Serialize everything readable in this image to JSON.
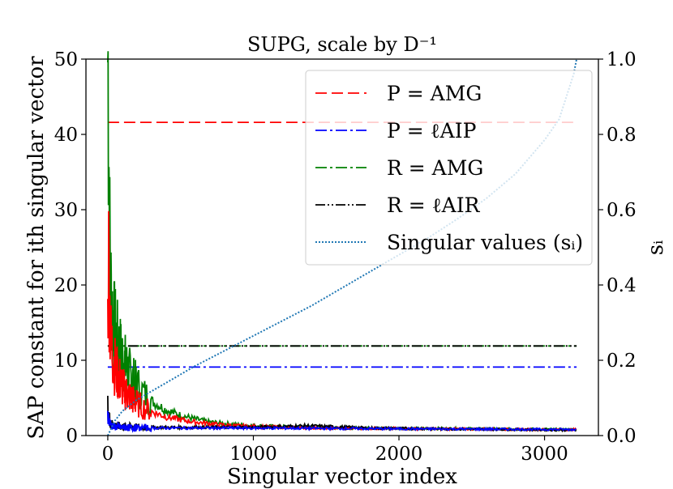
{
  "chart_data": {
    "type": "line",
    "title": "SUPG, scale by D⁻¹",
    "xlabel": "Singular vector index",
    "ylabel": "SAP constant for ith singular vector",
    "ylabel_right": "sᵢ",
    "xlim": [
      -150,
      3370
    ],
    "ylim": [
      0,
      50
    ],
    "ylim_right": [
      0.0,
      1.0
    ],
    "xticks": [
      0,
      1000,
      2000,
      3000
    ],
    "yticks": [
      0,
      10,
      20,
      30,
      40,
      50
    ],
    "yticks_right": [
      "0.0",
      "0.2",
      "0.4",
      "0.6",
      "0.8",
      "1.0"
    ],
    "n_vectors": 3220,
    "series": [
      {
        "name": "P = AMG (mean)",
        "legend": "P = AMG",
        "color": "#ff0000",
        "style": "dashed",
        "axis": "left",
        "x": [
          0,
          3220
        ],
        "y": [
          41.6,
          41.6
        ]
      },
      {
        "name": "P = ℓAIP (mean)",
        "legend": "P = ℓAIP",
        "color": "#0000ff",
        "style": "dashdot",
        "axis": "left",
        "x": [
          0,
          3220
        ],
        "y": [
          9.1,
          9.1
        ]
      },
      {
        "name": "R = AMG (mean)",
        "legend": "R = AMG",
        "color": "#008000",
        "style": "dashdot",
        "axis": "left",
        "x": [
          0,
          3220
        ],
        "y": [
          11.9,
          11.9
        ]
      },
      {
        "name": "R = ℓAIR (mean)",
        "legend": "R = ℓAIR",
        "color": "#000000",
        "style": "dashdotdot",
        "axis": "left",
        "x": [
          0,
          3220
        ],
        "y": [
          11.9,
          11.9
        ]
      },
      {
        "name": "R = AMG",
        "color": "#008000",
        "style": "solid",
        "axis": "left",
        "x": [
          0,
          5,
          10,
          15,
          20,
          30,
          40,
          60,
          80,
          100,
          130,
          160,
          200,
          250,
          300,
          400,
          500,
          600,
          700,
          800,
          1000,
          1200,
          1500,
          1800,
          2200,
          2600,
          3000,
          3220
        ],
        "y": [
          50,
          46,
          32,
          24,
          20,
          17,
          15,
          13,
          11.5,
          10.5,
          9,
          7.8,
          6.7,
          5.5,
          4.6,
          3.4,
          2.7,
          2.2,
          1.8,
          1.6,
          1.3,
          1.2,
          1.1,
          1.0,
          0.95,
          0.9,
          0.85,
          0.8
        ]
      },
      {
        "name": "P = AMG",
        "color": "#ff0000",
        "style": "solid",
        "axis": "left",
        "x": [
          0,
          5,
          10,
          15,
          20,
          30,
          40,
          60,
          80,
          100,
          130,
          160,
          200,
          250,
          300,
          400,
          500,
          600,
          700,
          800,
          1000,
          1200,
          1500,
          1800,
          2200,
          2600,
          3000,
          3220
        ],
        "y": [
          15,
          24,
          20,
          16,
          13,
          11.5,
          10,
          8.5,
          7.5,
          6.5,
          5.6,
          5,
          4.3,
          3.7,
          3.2,
          2.5,
          2.1,
          1.8,
          1.6,
          1.4,
          1.2,
          1.1,
          1.0,
          0.95,
          0.9,
          0.85,
          0.8,
          0.8
        ]
      },
      {
        "name": "R = ℓAIR",
        "color": "#000000",
        "style": "solid",
        "axis": "left",
        "x": [
          0,
          5,
          10,
          15,
          20,
          30,
          40,
          60,
          80,
          100,
          150,
          200,
          400,
          600,
          800,
          1000,
          1200,
          1350,
          1500,
          1800,
          2200,
          2600,
          3000,
          3220
        ],
        "y": [
          3.8,
          3.2,
          2.4,
          2.0,
          1.7,
          1.5,
          1.4,
          1.3,
          1.25,
          1.2,
          1.15,
          1.1,
          1.1,
          1.1,
          1.1,
          1.1,
          1.2,
          1.3,
          1.2,
          1.0,
          0.9,
          0.85,
          0.75,
          0.7
        ]
      },
      {
        "name": "P = ℓAIP",
        "color": "#0000ff",
        "style": "solid",
        "axis": "left",
        "x": [
          0,
          10,
          20,
          40,
          80,
          150,
          300,
          1000,
          2000,
          3220
        ],
        "y": [
          3.0,
          2.0,
          1.5,
          1.2,
          1.1,
          1.05,
          1.0,
          1.0,
          0.9,
          0.8
        ]
      },
      {
        "name": "Singular values (sᵢ)",
        "legend": "Singular values (sᵢ)",
        "color": "#1f77b4",
        "style": "dotted",
        "axis": "right",
        "x": [
          0,
          50,
          100,
          200,
          400,
          600,
          800,
          1000,
          1200,
          1400,
          1600,
          1800,
          2000,
          2200,
          2400,
          2600,
          2800,
          3000,
          3100,
          3200,
          3220
        ],
        "y": [
          0.0,
          0.04,
          0.065,
          0.095,
          0.14,
          0.185,
          0.225,
          0.265,
          0.305,
          0.345,
          0.39,
          0.435,
          0.48,
          0.525,
          0.575,
          0.63,
          0.695,
          0.785,
          0.84,
          0.96,
          1.0
        ]
      }
    ],
    "legend_position": "upper-right"
  }
}
